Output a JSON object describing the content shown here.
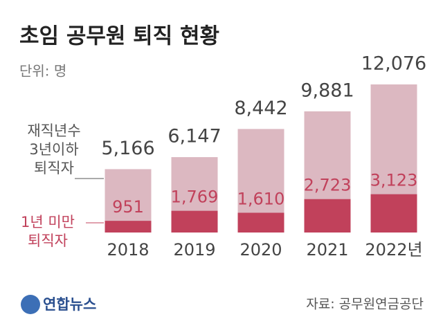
{
  "chart_data": {
    "type": "bar",
    "title": "초임 공무원 퇴직 현황",
    "unit_label": "단위: 명",
    "categories": [
      "2018",
      "2019",
      "2020",
      "2021",
      "2022년"
    ],
    "series": [
      {
        "name": "재직년수\n3년이하\n퇴직자",
        "color": "#dcb8c1",
        "values": [
          5166,
          6147,
          8442,
          9881,
          12076
        ],
        "value_labels": [
          "5,166",
          "6,147",
          "8,442",
          "9,881",
          "12,076"
        ],
        "label_color": "#444444"
      },
      {
        "name": "1년 미만\n퇴직자",
        "color": "#c1415b",
        "values": [
          951,
          1769,
          1610,
          2723,
          3123
        ],
        "value_labels": [
          "951",
          "1,769",
          "1,610",
          "2,723",
          "3,123"
        ],
        "label_color": "#c1415b"
      }
    ],
    "source": "자료: 공무원연금공단",
    "logo": "연합뉴스"
  }
}
